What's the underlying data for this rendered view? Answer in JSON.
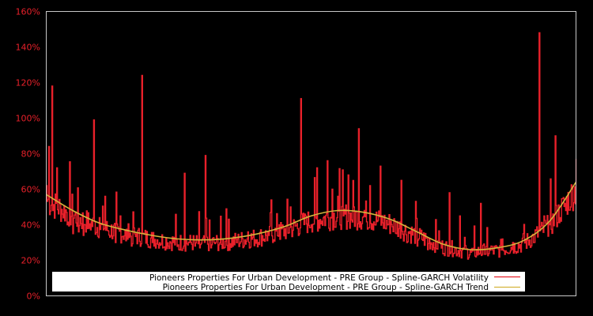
{
  "chart_data": {
    "type": "line",
    "title": "",
    "xlabel": "",
    "ylabel": "",
    "ylim": [
      0,
      160
    ],
    "y_ticks": [
      "0%",
      "20%",
      "40%",
      "60%",
      "80%",
      "100%",
      "120%",
      "140%",
      "160%"
    ],
    "grid": false,
    "legend_position": "lower center (inside plot)",
    "background": "#000000",
    "colors": {
      "volatility": "#e8202a",
      "trend": "#d4b43c",
      "axis_frame": "#c8c8c8",
      "tick_labels": "#e8202a",
      "legend_bg": "#ffffff"
    },
    "x_note": "Time index (no x tick labels shown); values sampled left to right as fraction of plot width",
    "series": [
      {
        "name": "Pioneers Properties For Urban Development - PRE Group - Spline-GARCH Volatility",
        "color": "#e8202a",
        "x": [
          0.0,
          0.005,
          0.01,
          0.012,
          0.02,
          0.03,
          0.04,
          0.05,
          0.06,
          0.07,
          0.08,
          0.09,
          0.1,
          0.11,
          0.12,
          0.13,
          0.14,
          0.15,
          0.16,
          0.17,
          0.18,
          0.2,
          0.21,
          0.22,
          0.23,
          0.25,
          0.26,
          0.27,
          0.28,
          0.29,
          0.3,
          0.31,
          0.32,
          0.33,
          0.34,
          0.36,
          0.38,
          0.4,
          0.42,
          0.44,
          0.46,
          0.48,
          0.49,
          0.5,
          0.51,
          0.52,
          0.53,
          0.54,
          0.55,
          0.56,
          0.57,
          0.58,
          0.59,
          0.6,
          0.61,
          0.62,
          0.63,
          0.64,
          0.65,
          0.66,
          0.67,
          0.68,
          0.7,
          0.72,
          0.74,
          0.76,
          0.77,
          0.78,
          0.8,
          0.82,
          0.84,
          0.86,
          0.88,
          0.9,
          0.92,
          0.93,
          0.94,
          0.95,
          0.96,
          0.97,
          0.98,
          0.99,
          1.0
        ],
        "values": [
          62,
          84,
          118,
          48,
          72,
          46,
          40,
          35,
          36,
          34,
          38,
          99,
          44,
          56,
          33,
          30,
          45,
          31,
          28,
          35,
          124,
          30,
          29,
          27,
          28,
          26,
          69,
          30,
          28,
          27,
          79,
          27,
          30,
          29,
          49,
          32,
          36,
          30,
          34,
          40,
          50,
          111,
          45,
          40,
          72,
          42,
          76,
          60,
          56,
          45,
          68,
          50,
          94,
          48,
          62,
          40,
          73,
          38,
          42,
          35,
          65,
          30,
          28,
          26,
          31,
          58,
          24,
          45,
          26,
          52,
          28,
          32,
          30,
          35,
          30,
          148,
          45,
          40,
          90,
          44,
          48,
          50,
          77
        ]
      },
      {
        "name": "Pioneers Properties For Urban Development - PRE Group - Spline-GARCH Trend",
        "color": "#d4b43c",
        "x": [
          0.0,
          0.05,
          0.1,
          0.15,
          0.2,
          0.25,
          0.3,
          0.35,
          0.4,
          0.45,
          0.5,
          0.55,
          0.6,
          0.65,
          0.7,
          0.75,
          0.8,
          0.85,
          0.9,
          0.95,
          1.0
        ],
        "values": [
          57,
          48,
          41,
          37,
          34,
          32,
          31.5,
          32.5,
          35,
          39,
          45,
          48,
          47,
          43,
          36,
          29,
          26,
          27,
          31,
          42,
          64
        ]
      }
    ]
  },
  "legend": {
    "items": [
      {
        "label": "Pioneers Properties For Urban Development - PRE Group - Spline-GARCH Volatility",
        "color": "#e8202a"
      },
      {
        "label": "Pioneers Properties For Urban Development - PRE Group - Spline-GARCH Trend",
        "color": "#d4b43c"
      }
    ]
  }
}
